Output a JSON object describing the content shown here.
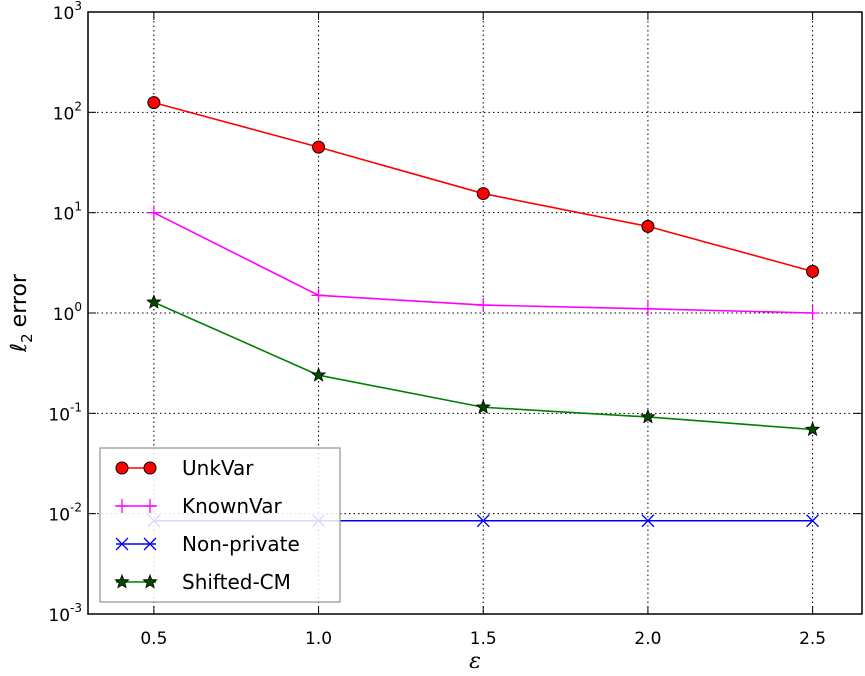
{
  "chart_data": {
    "type": "line",
    "x": [
      0.5,
      1.0,
      1.5,
      2.0,
      2.5
    ],
    "xlim": [
      0.3,
      2.65
    ],
    "ylim": [
      0.001,
      1000
    ],
    "yscale": "log",
    "xlabel": "ε",
    "ylabel": "error",
    "ylabel_symbol": "ℓ",
    "ylabel_subscript": "2",
    "grid": true,
    "grid_style": "dotted",
    "legend_position": "lower-left",
    "xticks": [
      0.5,
      1.0,
      1.5,
      2.0,
      2.5
    ],
    "xtick_labels": [
      "0.5",
      "1.0",
      "1.5",
      "2.0",
      "2.5"
    ],
    "yticks": [
      {
        "value": 1000,
        "base": "10",
        "exp": "3"
      },
      {
        "value": 100,
        "base": "10",
        "exp": "2"
      },
      {
        "value": 10,
        "base": "10",
        "exp": "1"
      },
      {
        "value": 1,
        "base": "10",
        "exp": "0"
      },
      {
        "value": 0.1,
        "base": "10",
        "exp": "-1"
      },
      {
        "value": 0.01,
        "base": "10",
        "exp": "-2"
      },
      {
        "value": 0.001,
        "base": "10",
        "exp": "-3"
      }
    ],
    "series": [
      {
        "name": "UnkVar",
        "values": [
          125,
          45,
          15.5,
          7.3,
          2.6
        ],
        "color": "#ff0000",
        "marker": "circle",
        "marker_fill": "#ff0000"
      },
      {
        "name": "KnownVar",
        "values": [
          10,
          1.5,
          1.2,
          1.1,
          1.0
        ],
        "color": "#ff00ff",
        "marker": "plus",
        "marker_fill": "#ff00ff"
      },
      {
        "name": "Non-private",
        "values": [
          0.0085,
          0.0085,
          0.0085,
          0.0085,
          0.0085
        ],
        "color": "#0000ff",
        "marker": "x",
        "marker_fill": "#0000ff"
      },
      {
        "name": "Shifted-CM",
        "values": [
          1.28,
          0.24,
          0.115,
          0.092,
          0.069
        ],
        "color": "#008000",
        "marker": "star",
        "marker_fill": "#004d00"
      }
    ]
  }
}
